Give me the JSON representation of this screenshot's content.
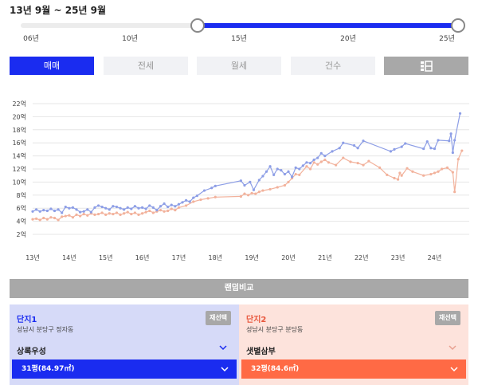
{
  "period": {
    "label": "13년 9월 ~ 25년 9월",
    "range_start_year": 13.67,
    "range_end_year": 25.67,
    "axis_start_year": 6,
    "axis_end_year": 25
  },
  "slider": {
    "ticks": [
      "06년",
      "10년",
      "15년",
      "20년",
      "25년"
    ]
  },
  "tabs": [
    {
      "label": "매매",
      "active": true
    },
    {
      "label": "전세",
      "active": false
    },
    {
      "label": "월세",
      "active": false
    },
    {
      "label": "건수",
      "active": false
    },
    {
      "label": "",
      "icon": "list-icon",
      "active": false
    }
  ],
  "chart_data": {
    "type": "line",
    "ylim": [
      2,
      22
    ],
    "y_ticks": [
      "2억",
      "4억",
      "6억",
      "8억",
      "10억",
      "12억",
      "14억",
      "16억",
      "18억",
      "20억",
      "22억"
    ],
    "x_ticks": [
      "13년",
      "14년",
      "15년",
      "16년",
      "17년",
      "18년",
      "19년",
      "20년",
      "21년",
      "22년",
      "23년",
      "24년"
    ],
    "xlim": [
      13,
      24.95
    ],
    "series": [
      {
        "color": "#8d9ee6",
        "points": [
          [
            13.0,
            5.5
          ],
          [
            13.1,
            5.8
          ],
          [
            13.2,
            5.5
          ],
          [
            13.3,
            5.7
          ],
          [
            13.4,
            5.6
          ],
          [
            13.5,
            5.9
          ],
          [
            13.6,
            5.6
          ],
          [
            13.7,
            5.8
          ],
          [
            13.8,
            5.3
          ],
          [
            13.9,
            6.2
          ],
          [
            14.0,
            6.0
          ],
          [
            14.1,
            6.1
          ],
          [
            14.2,
            5.8
          ],
          [
            14.3,
            5.4
          ],
          [
            14.4,
            5.5
          ],
          [
            14.5,
            5.8
          ],
          [
            14.6,
            5.4
          ],
          [
            14.7,
            6.1
          ],
          [
            14.8,
            6.4
          ],
          [
            14.9,
            6.2
          ],
          [
            15.0,
            6.0
          ],
          [
            15.1,
            5.8
          ],
          [
            15.2,
            6.3
          ],
          [
            15.3,
            6.2
          ],
          [
            15.4,
            6.0
          ],
          [
            15.5,
            5.8
          ],
          [
            15.6,
            6.1
          ],
          [
            15.7,
            5.9
          ],
          [
            15.8,
            6.3
          ],
          [
            15.9,
            6.0
          ],
          [
            16.0,
            6.1
          ],
          [
            16.1,
            5.9
          ],
          [
            16.2,
            6.4
          ],
          [
            16.3,
            6.1
          ],
          [
            16.4,
            5.7
          ],
          [
            16.5,
            6.3
          ],
          [
            16.6,
            6.7
          ],
          [
            16.7,
            6.2
          ],
          [
            16.8,
            6.5
          ],
          [
            16.9,
            6.3
          ],
          [
            17.0,
            6.6
          ],
          [
            17.1,
            6.9
          ],
          [
            17.2,
            7.2
          ],
          [
            17.3,
            7.0
          ],
          [
            17.4,
            7.6
          ],
          [
            17.5,
            7.9
          ],
          [
            17.7,
            8.7
          ],
          [
            17.9,
            9.1
          ],
          [
            18.0,
            9.4
          ],
          [
            18.7,
            10.2
          ],
          [
            18.8,
            9.5
          ],
          [
            18.95,
            10.0
          ],
          [
            19.05,
            8.8
          ],
          [
            19.2,
            10.3
          ],
          [
            19.3,
            10.9
          ],
          [
            19.4,
            11.6
          ],
          [
            19.5,
            12.4
          ],
          [
            19.6,
            11.1
          ],
          [
            19.7,
            12.0
          ],
          [
            19.8,
            11.8
          ],
          [
            19.9,
            11.2
          ],
          [
            20.0,
            11.6
          ],
          [
            20.1,
            10.8
          ],
          [
            20.2,
            12.2
          ],
          [
            20.3,
            12.0
          ],
          [
            20.4,
            12.5
          ],
          [
            20.5,
            13.0
          ],
          [
            20.6,
            12.9
          ],
          [
            20.7,
            13.4
          ],
          [
            20.8,
            13.7
          ],
          [
            20.9,
            14.4
          ],
          [
            21.0,
            14.0
          ],
          [
            21.2,
            14.7
          ],
          [
            21.4,
            15.2
          ],
          [
            21.5,
            16.0
          ],
          [
            21.8,
            15.6
          ],
          [
            21.9,
            15.2
          ],
          [
            22.05,
            16.3
          ],
          [
            22.8,
            14.7
          ],
          [
            22.9,
            15.0
          ],
          [
            23.1,
            15.4
          ],
          [
            23.2,
            15.9
          ],
          [
            23.7,
            15.1
          ],
          [
            23.8,
            16.2
          ],
          [
            23.9,
            15.2
          ],
          [
            24.0,
            15.1
          ],
          [
            24.1,
            16.4
          ],
          [
            24.4,
            16.3
          ],
          [
            24.45,
            17.4
          ],
          [
            24.5,
            14.5
          ],
          [
            24.55,
            16.4
          ],
          [
            24.7,
            20.5
          ]
        ]
      },
      {
        "color": "#f2b29c",
        "points": [
          [
            13.0,
            4.3
          ],
          [
            13.1,
            4.4
          ],
          [
            13.2,
            4.2
          ],
          [
            13.3,
            4.5
          ],
          [
            13.4,
            4.3
          ],
          [
            13.5,
            4.6
          ],
          [
            13.6,
            4.5
          ],
          [
            13.7,
            4.2
          ],
          [
            13.8,
            4.7
          ],
          [
            13.9,
            4.8
          ],
          [
            14.0,
            4.9
          ],
          [
            14.1,
            4.6
          ],
          [
            14.2,
            5.0
          ],
          [
            14.3,
            4.8
          ],
          [
            14.4,
            5.1
          ],
          [
            14.5,
            4.9
          ],
          [
            14.6,
            5.2
          ],
          [
            14.7,
            5.0
          ],
          [
            14.8,
            5.1
          ],
          [
            14.9,
            5.3
          ],
          [
            15.0,
            5.0
          ],
          [
            15.1,
            5.2
          ],
          [
            15.2,
            5.1
          ],
          [
            15.3,
            5.3
          ],
          [
            15.4,
            5.0
          ],
          [
            15.5,
            5.2
          ],
          [
            15.6,
            5.4
          ],
          [
            15.7,
            5.1
          ],
          [
            15.8,
            5.3
          ],
          [
            15.9,
            5.0
          ],
          [
            16.0,
            5.2
          ],
          [
            16.1,
            5.4
          ],
          [
            16.2,
            5.6
          ],
          [
            16.3,
            5.3
          ],
          [
            16.4,
            5.5
          ],
          [
            16.5,
            5.7
          ],
          [
            16.6,
            5.5
          ],
          [
            16.7,
            5.6
          ],
          [
            16.8,
            5.9
          ],
          [
            16.9,
            5.7
          ],
          [
            17.0,
            6.1
          ],
          [
            17.2,
            6.4
          ],
          [
            17.4,
            7.0
          ],
          [
            17.6,
            7.3
          ],
          [
            17.8,
            7.5
          ],
          [
            18.0,
            7.7
          ],
          [
            18.7,
            7.8
          ],
          [
            18.8,
            8.2
          ],
          [
            18.9,
            8.0
          ],
          [
            19.0,
            8.3
          ],
          [
            19.1,
            8.2
          ],
          [
            19.2,
            8.5
          ],
          [
            19.3,
            8.7
          ],
          [
            19.5,
            8.9
          ],
          [
            19.7,
            9.2
          ],
          [
            19.9,
            9.5
          ],
          [
            20.0,
            10.0
          ],
          [
            20.1,
            10.6
          ],
          [
            20.2,
            11.2
          ],
          [
            20.3,
            11.1
          ],
          [
            20.5,
            12.4
          ],
          [
            20.6,
            12.0
          ],
          [
            20.7,
            13.0
          ],
          [
            20.8,
            12.7
          ],
          [
            20.9,
            13.1
          ],
          [
            21.0,
            13.4
          ],
          [
            21.1,
            13.0
          ],
          [
            21.3,
            12.6
          ],
          [
            21.5,
            13.7
          ],
          [
            21.7,
            13.1
          ],
          [
            21.9,
            12.9
          ],
          [
            22.05,
            12.6
          ],
          [
            22.2,
            13.2
          ],
          [
            22.5,
            12.2
          ],
          [
            22.7,
            11.1
          ],
          [
            22.9,
            10.6
          ],
          [
            23.0,
            10.4
          ],
          [
            23.05,
            11.4
          ],
          [
            23.1,
            11.0
          ],
          [
            23.25,
            12.1
          ],
          [
            23.4,
            11.6
          ],
          [
            23.7,
            11.0
          ],
          [
            23.9,
            11.2
          ],
          [
            24.0,
            11.4
          ],
          [
            24.1,
            11.6
          ],
          [
            24.2,
            12.0
          ],
          [
            24.35,
            12.2
          ],
          [
            24.5,
            11.5
          ],
          [
            24.55,
            8.5
          ],
          [
            24.65,
            13.5
          ],
          [
            24.75,
            14.8
          ]
        ]
      }
    ]
  },
  "compare_button": "랜덤비교",
  "complex1": {
    "title": "단지1",
    "address": "성남시 분당구 정자동",
    "reselect": "재선택",
    "name": "상록우성",
    "size": "31평(84.97㎡)"
  },
  "complex2": {
    "title": "단지2",
    "address": "성남시 분당구 분당동",
    "reselect": "재선택",
    "name": "샛별삼부",
    "size": "32평(84.6㎡)"
  },
  "colors": {
    "accent": "#1a2cf0",
    "accent2": "#ff6a45",
    "series1": "#8d9ee6",
    "series2": "#f2b29c"
  }
}
